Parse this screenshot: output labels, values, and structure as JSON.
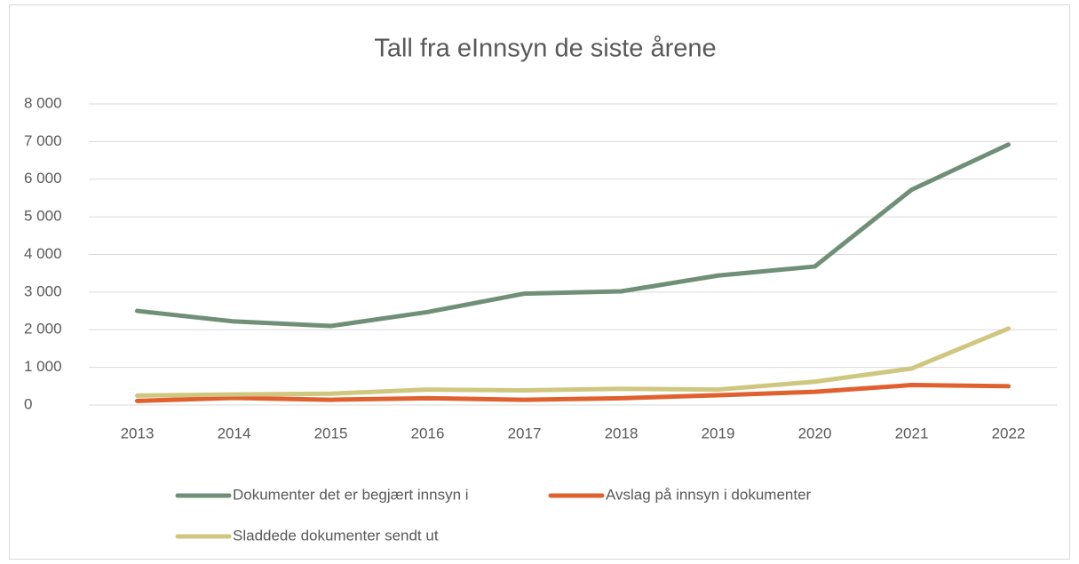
{
  "chart_data": {
    "type": "line",
    "title": "Tall fra eInnsyn de siste årene",
    "categories": [
      "2013",
      "2014",
      "2015",
      "2016",
      "2017",
      "2018",
      "2019",
      "2020",
      "2021",
      "2022"
    ],
    "series": [
      {
        "name": "Dokumenter det er begjært innsyn i",
        "color": "#6f8f77",
        "values": [
          2500,
          2220,
          2100,
          2470,
          2960,
          3020,
          3440,
          3680,
          5720,
          6920
        ]
      },
      {
        "name": "Avslag på innsyn i dokumenter",
        "color": "#e0602f",
        "values": [
          110,
          190,
          140,
          180,
          140,
          180,
          260,
          350,
          530,
          500
        ]
      },
      {
        "name": "Sladdede dokumenter sendt ut",
        "color": "#cfc77f",
        "values": [
          250,
          280,
          300,
          410,
          390,
          430,
          410,
          620,
          970,
          2030
        ]
      }
    ],
    "ylim": [
      0,
      8000
    ],
    "yticks": [
      0,
      {
        "value": 1000,
        "label": "1 000"
      },
      {
        "value": 2000,
        "label": "2 000"
      },
      {
        "value": 3000,
        "label": "3 000"
      },
      {
        "value": 4000,
        "label": "4 000"
      },
      {
        "value": 5000,
        "label": "5 000"
      },
      {
        "value": 6000,
        "label": "6 000"
      },
      {
        "value": 7000,
        "label": "7 000"
      },
      {
        "value": 8000,
        "label": "8 000"
      }
    ],
    "grid": true,
    "legend": "bottom"
  }
}
